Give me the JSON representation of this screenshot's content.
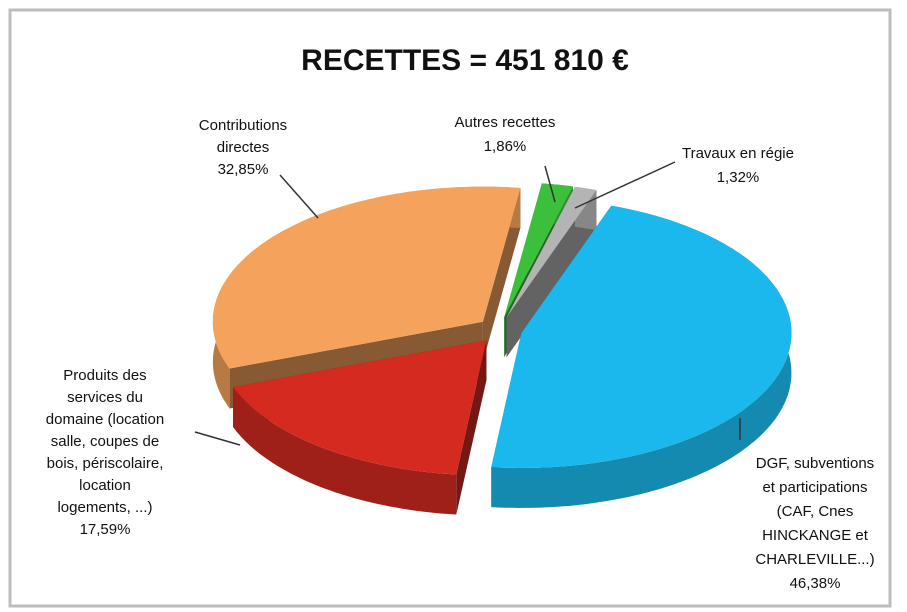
{
  "chart_data": {
    "type": "pie",
    "title": "RECETTES = 451 810 €",
    "categories": [
      "Autres recettes",
      "Travaux en régie",
      "DGF, subventions\net participations\n(CAF, Cnes\nHINCKANGE et\nCHARLEVILLE...)",
      "Produits des\nservices du\ndomaine (location\nsalle, coupes de\nbois, périscolaire,\nlocation\nlogements, ...)",
      "Contributions\ndirectes"
    ],
    "values": [
      1.86,
      1.32,
      46.38,
      17.59,
      32.85
    ],
    "value_labels": [
      "1,86%",
      "1,32%",
      "46,38%",
      "17,59%",
      "32,85%"
    ],
    "colors": [
      "#3cc03c",
      "#b4b4b4",
      "#1ab8ec",
      "#d42a20",
      "#f5a35c"
    ]
  }
}
